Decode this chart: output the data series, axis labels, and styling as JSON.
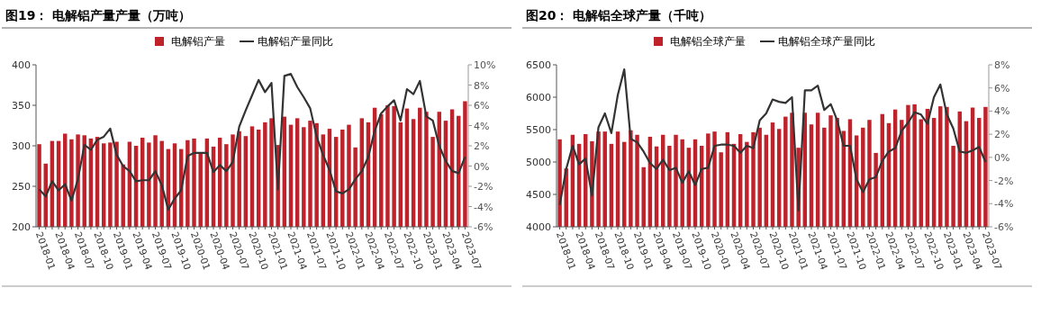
{
  "chart_data": [
    {
      "type": "bar",
      "title": "图19： 电解铝产量产量（万吨）",
      "legend": "top",
      "grid": false,
      "categories": [
        "2018-01",
        null,
        null,
        "2018-04",
        null,
        null,
        "2018-07",
        null,
        null,
        "2018-10",
        null,
        null,
        "2019-01",
        null,
        null,
        "2019-04",
        null,
        null,
        "2019-07",
        null,
        null,
        "2019-10",
        null,
        null,
        "2020-01",
        null,
        null,
        "2020-04",
        null,
        null,
        "2020-07",
        null,
        null,
        "2020-10",
        null,
        null,
        "2021-01",
        null,
        null,
        "2021-04",
        null,
        null,
        "2021-07",
        null,
        null,
        "2021-10",
        null,
        null,
        "2022-01",
        null,
        null,
        "2022-04",
        null,
        null,
        "2022-07",
        null,
        null,
        "2022-10",
        null,
        null,
        "2023-01",
        null,
        null,
        "2023-04",
        null,
        null,
        "2023-07"
      ],
      "ylim": [
        200,
        400
      ],
      "yticks": [
        200,
        250,
        300,
        350,
        400
      ],
      "y2lim": [
        -6,
        10
      ],
      "y2ticks": [
        {
          "value": -6,
          "label": "-6%"
        },
        {
          "value": -4,
          "label": "-4%"
        },
        {
          "value": -2,
          "label": "-2%"
        },
        {
          "value": 0,
          "label": "0%"
        },
        {
          "value": 2,
          "label": "2%"
        },
        {
          "value": 4,
          "label": "4%"
        },
        {
          "value": 6,
          "label": "6%"
        },
        {
          "value": 8,
          "label": "8%"
        },
        {
          "value": 10,
          "label": "10%"
        }
      ],
      "series": [
        {
          "name": "电解铝产量",
          "color": "#c0222b",
          "values": [
            302,
            278,
            306,
            306,
            315,
            308,
            314,
            313,
            309,
            311,
            303,
            304,
            305,
            277,
            305,
            300,
            310,
            304,
            313,
            306,
            296,
            303,
            296,
            307,
            309,
            291,
            309,
            299,
            310,
            302,
            314,
            318,
            312,
            324,
            320,
            329,
            334,
            301,
            336,
            326,
            334,
            323,
            331,
            328,
            314,
            321,
            311,
            320,
            326,
            298,
            334,
            329,
            347,
            339,
            350,
            349,
            329,
            346,
            333,
            347,
            342,
            311,
            342,
            331,
            345,
            337,
            355
          ]
        },
        {
          "name": "电解铝产量同比",
          "type": "line",
          "axis": "y2",
          "color": "#333333",
          "values": [
            -2.3,
            -3.0,
            -1.5,
            -2.4,
            -1.8,
            -3.4,
            -1.3,
            2.1,
            1.6,
            2.6,
            2.9,
            3.7,
            1.1,
            0.0,
            -0.5,
            -1.5,
            -1.4,
            -1.4,
            -0.5,
            -1.9,
            -4.3,
            -3.2,
            -2.4,
            1.0,
            1.3,
            1.3,
            1.3,
            -0.6,
            0.1,
            -0.5,
            0.4,
            3.9,
            5.5,
            7.0,
            8.5,
            7.3,
            8.2,
            -2.3,
            8.9,
            9.1,
            7.8,
            6.8,
            5.7,
            2.9,
            1.1,
            -0.4,
            -2.5,
            -2.7,
            -2.3,
            -1.3,
            -0.5,
            0.9,
            3.5,
            5.2,
            5.9,
            6.5,
            4.5,
            7.6,
            7.1,
            8.4,
            4.9,
            4.5,
            2.0,
            0.5,
            -0.5,
            -0.7,
            0.9
          ]
        }
      ]
    },
    {
      "type": "bar",
      "title": "图20： 电解铝全球产量（千吨）",
      "legend": "top",
      "grid": false,
      "categories": [
        "2018-01",
        null,
        null,
        "2018-04",
        null,
        null,
        "2018-07",
        null,
        null,
        "2018-10",
        null,
        null,
        "2019-01",
        null,
        null,
        "2019-04",
        null,
        null,
        "2019-07",
        null,
        null,
        "2019-10",
        null,
        null,
        "2020-01",
        null,
        null,
        "2020-04",
        null,
        null,
        "2020-07",
        null,
        null,
        "2020-10",
        null,
        null,
        "2021-01",
        null,
        null,
        "2021-04",
        null,
        null,
        "2021-07",
        null,
        null,
        "2021-10",
        null,
        null,
        "2022-01",
        null,
        null,
        "2022-04",
        null,
        null,
        "2022-07",
        null,
        null,
        "2022-10",
        null,
        null,
        "2023-01",
        null,
        null,
        "2023-04",
        null,
        null,
        "2023-07"
      ],
      "ylim": [
        4000,
        6500
      ],
      "yticks": [
        4000,
        4500,
        5000,
        5500,
        6000,
        6500
      ],
      "y2lim": [
        -6,
        8
      ],
      "y2ticks": [
        {
          "value": -6,
          "label": "-6%"
        },
        {
          "value": -4,
          "label": "-4%"
        },
        {
          "value": -2,
          "label": "-2%"
        },
        {
          "value": 0,
          "label": "0%"
        },
        {
          "value": 2,
          "label": "2%"
        },
        {
          "value": 4,
          "label": "4%"
        },
        {
          "value": 6,
          "label": "6%"
        },
        {
          "value": 8,
          "label": "8%"
        }
      ],
      "series": [
        {
          "name": "电解铝全球产量",
          "color": "#c0222b",
          "values": [
            5350,
            4900,
            5420,
            5280,
            5430,
            5320,
            5470,
            5470,
            5280,
            5470,
            5310,
            5490,
            5420,
            4920,
            5390,
            5240,
            5420,
            5250,
            5420,
            5350,
            5220,
            5350,
            5250,
            5440,
            5470,
            5150,
            5460,
            5280,
            5430,
            5310,
            5460,
            5530,
            5420,
            5610,
            5510,
            5700,
            5760,
            5220,
            5760,
            5580,
            5760,
            5530,
            5720,
            5680,
            5480,
            5660,
            5410,
            5530,
            5650,
            5140,
            5740,
            5600,
            5810,
            5650,
            5880,
            5890,
            5660,
            5820,
            5680,
            5860,
            5850,
            5250,
            5780,
            5630,
            5840,
            5680,
            5850
          ]
        },
        {
          "name": "电解铝全球产量同比",
          "type": "line",
          "axis": "y2",
          "color": "#333333",
          "values": [
            -4.1,
            -1.0,
            1.0,
            -0.6,
            -0.1,
            -3.3,
            2.6,
            3.8,
            2.1,
            5.4,
            7.6,
            1.6,
            1.3,
            0.5,
            -0.5,
            -1.0,
            -0.2,
            -1.1,
            -0.9,
            -2.2,
            -1.2,
            -2.4,
            -1.0,
            -0.9,
            1.0,
            1.1,
            1.1,
            1.0,
            0.4,
            1.0,
            0.8,
            3.2,
            3.8,
            5.0,
            4.8,
            4.7,
            5.2,
            -4.6,
            5.8,
            5.8,
            6.2,
            4.1,
            4.6,
            3.2,
            1.0,
            1.0,
            -1.9,
            -3.0,
            -1.9,
            -1.7,
            -0.3,
            0.5,
            0.8,
            2.3,
            3.0,
            3.9,
            3.7,
            2.9,
            5.2,
            6.3,
            3.7,
            2.5,
            0.5,
            0.4,
            0.6,
            0.9,
            -0.4
          ]
        }
      ]
    }
  ]
}
